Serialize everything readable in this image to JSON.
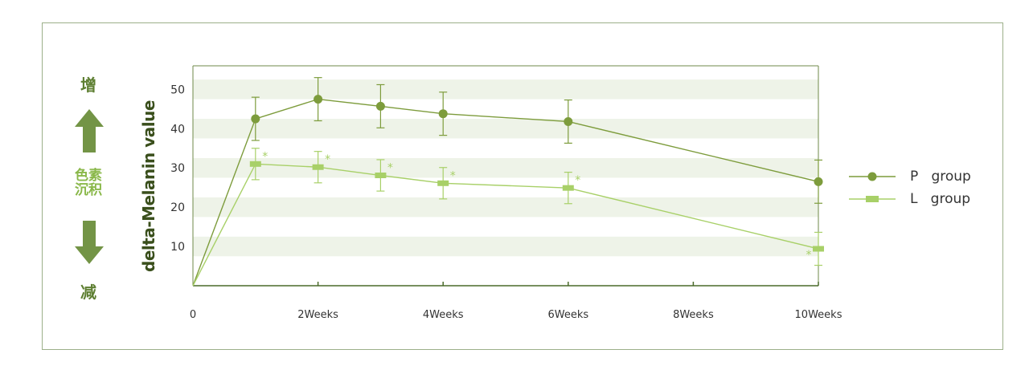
{
  "labels": {
    "increase": "增",
    "pigment_line1": "色素",
    "pigment_line2": "沉积",
    "decrease": "减"
  },
  "colors": {
    "p_group": "#7d9c3c",
    "l_group": "#a8d068",
    "band": "#eef3e8",
    "axis": "#6f8a4a",
    "arrow": "#739446"
  },
  "chart_data": {
    "type": "line",
    "ylabel": "delta-Melanin value",
    "xlabel": "",
    "x_ticks": [
      {
        "x": 0,
        "label": "0"
      },
      {
        "x": 2,
        "label": "2Weeks"
      },
      {
        "x": 4,
        "label": "4Weeks"
      },
      {
        "x": 6,
        "label": "6Weeks"
      },
      {
        "x": 8,
        "label": "8Weeks"
      },
      {
        "x": 10,
        "label": "10Weeks"
      }
    ],
    "y_ticks": [
      10,
      20,
      30,
      40,
      50
    ],
    "xlim": [
      0,
      10
    ],
    "ylim": [
      0,
      56
    ],
    "series": [
      {
        "name": "P group",
        "marker": "circle",
        "x": [
          0,
          1,
          2,
          3,
          4,
          6,
          10
        ],
        "y": [
          0,
          42.5,
          47.5,
          45.7,
          43.8,
          41.8,
          26.5
        ],
        "err": [
          0,
          5.5,
          5.5,
          5.5,
          5.5,
          5.5,
          5.5
        ],
        "stars": []
      },
      {
        "name": "L group",
        "marker": "square",
        "x": [
          0,
          1,
          2,
          3,
          4,
          6,
          10
        ],
        "y": [
          0,
          31.0,
          30.2,
          28.1,
          26.1,
          24.9,
          9.4
        ],
        "err": [
          0,
          4.0,
          4.0,
          4.0,
          4.0,
          4.0,
          4.2
        ],
        "stars": [
          {
            "x": 1,
            "label": "*",
            "side": "right"
          },
          {
            "x": 2,
            "label": "*",
            "side": "right"
          },
          {
            "x": 3,
            "label": "*",
            "side": "right"
          },
          {
            "x": 4,
            "label": "*",
            "side": "right"
          },
          {
            "x": 6,
            "label": "*",
            "side": "right"
          },
          {
            "x": 10,
            "label": "*",
            "side": "left"
          }
        ]
      }
    ],
    "legend": [
      {
        "label": "P   group",
        "marker": "circle"
      },
      {
        "label": "L   group",
        "marker": "square"
      }
    ],
    "legend_position": "right",
    "bands": true
  }
}
